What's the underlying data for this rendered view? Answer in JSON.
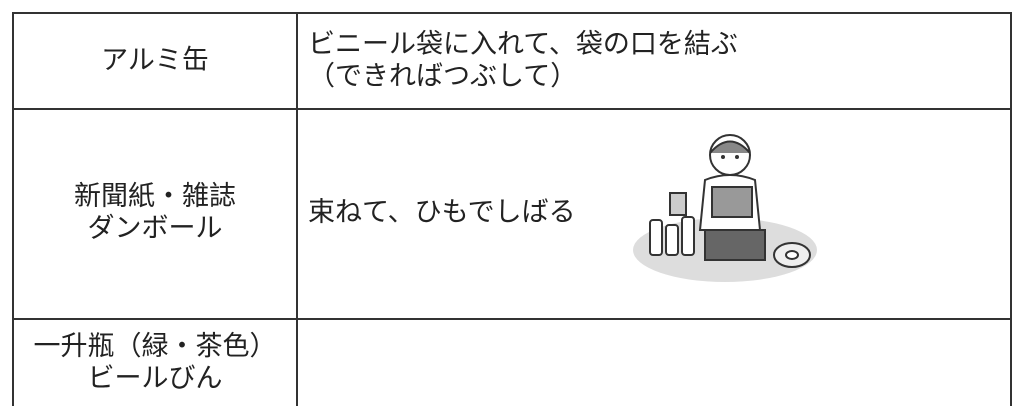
{
  "table": {
    "rows": [
      {
        "item": [
          "アルミ缶"
        ],
        "method": [
          "ビニール袋に入れて、袋の口を結ぶ",
          "（できればつぶして）"
        ]
      },
      {
        "item": [
          "新聞紙・雑誌",
          "ダンボール"
        ],
        "method": [
          "束ねて、ひもでしばる"
        ]
      },
      {
        "item": [
          "一升瓶（緑・茶色）",
          "ビールびん"
        ]
      }
    ]
  }
}
